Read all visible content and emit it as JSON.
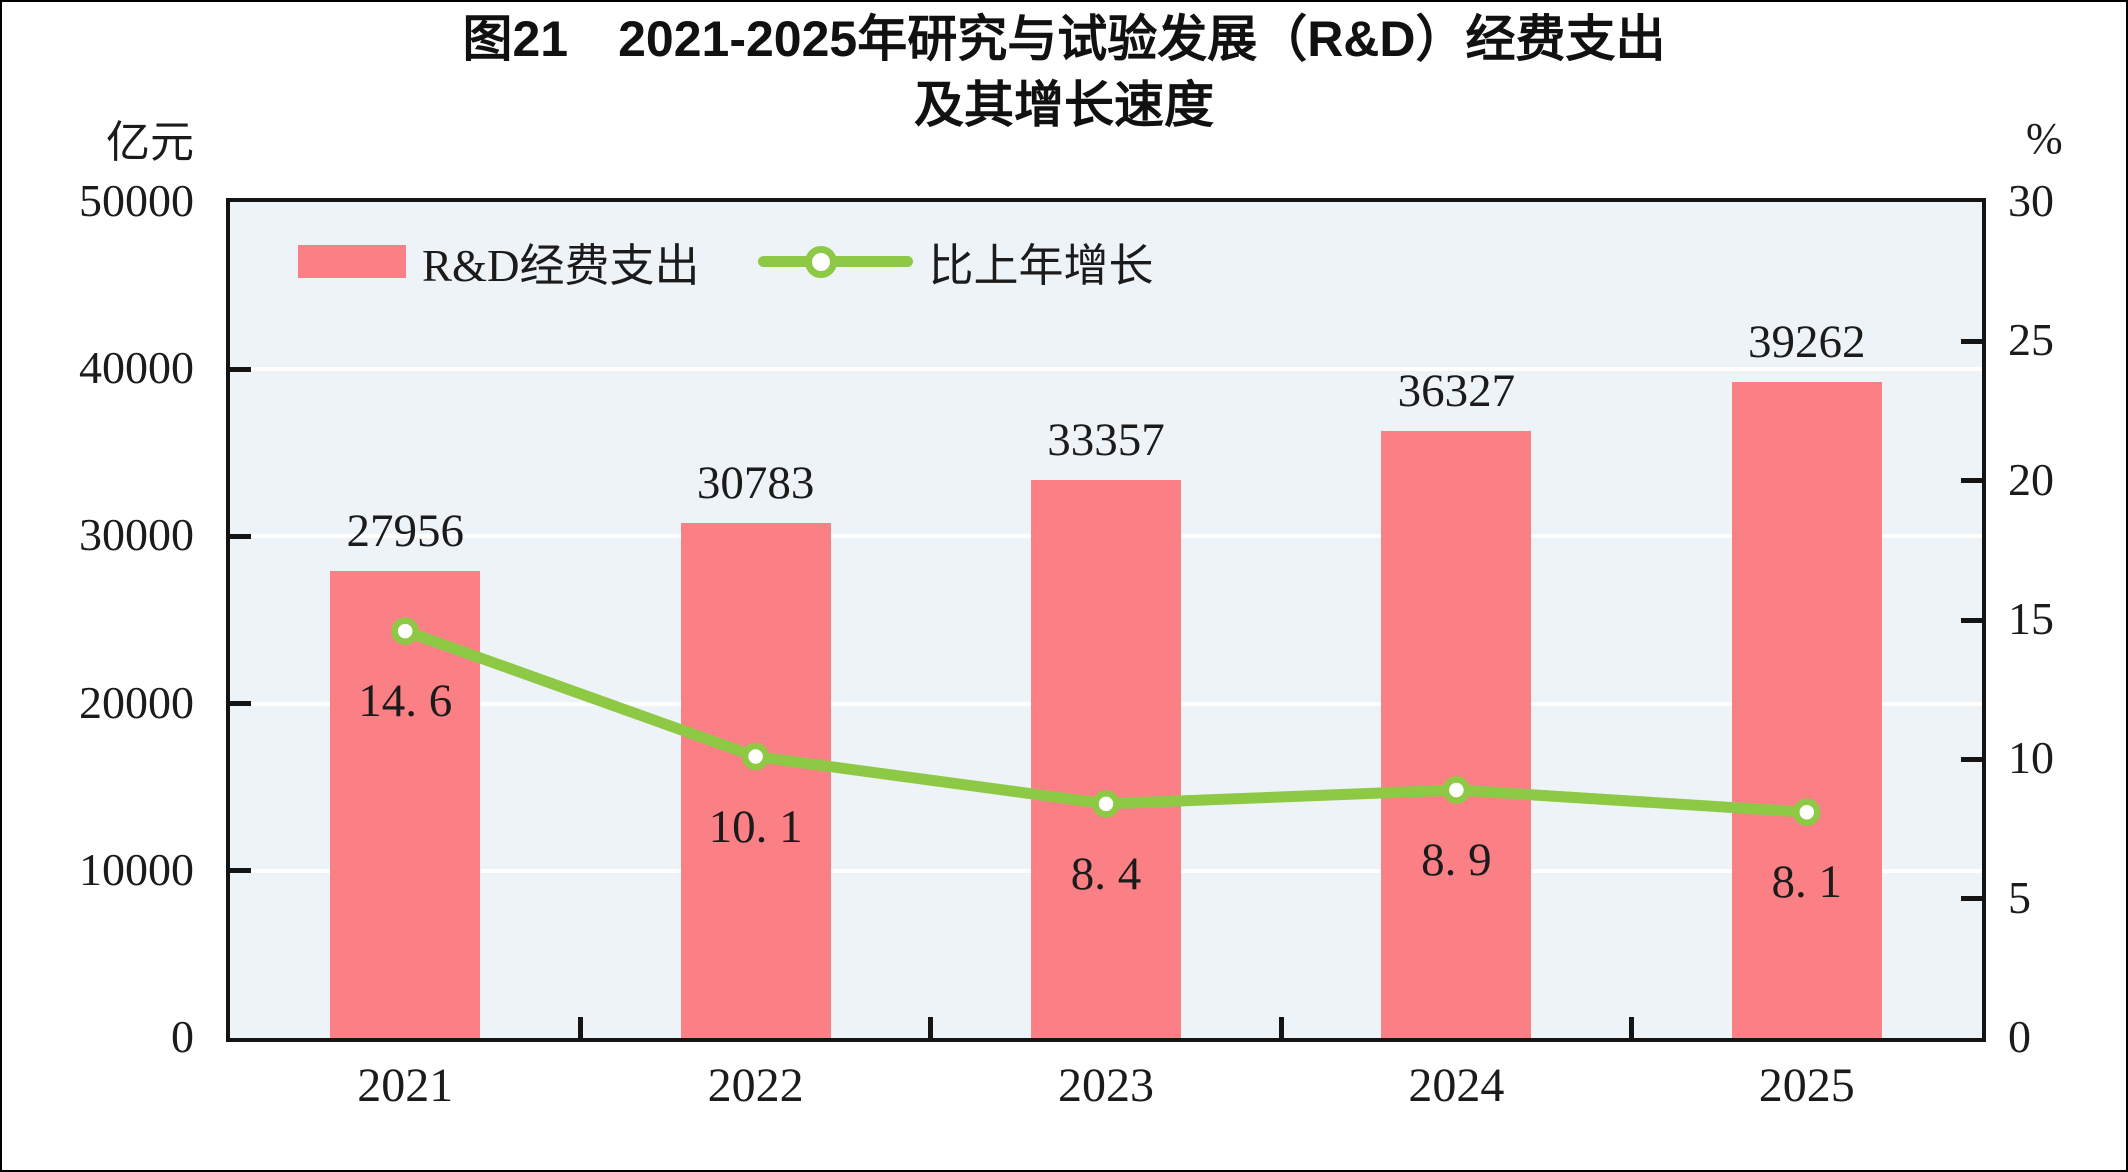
{
  "title": {
    "line1": "图21　2021-2025年研究与试验发展（R&D）经费支出",
    "line2": "及其增长速度"
  },
  "axes": {
    "left_unit": "亿元",
    "right_unit": "%",
    "left_tick_labels": [
      "50000",
      "40000",
      "30000",
      "20000",
      "10000",
      "0"
    ],
    "right_tick_labels": [
      "30",
      "25",
      "20",
      "15",
      "10",
      "5",
      "0"
    ]
  },
  "legend": {
    "bar_label": "R&D经费支出",
    "line_label": "比上年增长"
  },
  "chart_data": {
    "type": "bar",
    "subtype": "bar+line combo, dual axis",
    "title": "图21 2021-2025年研究与试验发展（R&D）经费支出及其增长速度",
    "categories": [
      "2021",
      "2022",
      "2023",
      "2024",
      "2025"
    ],
    "series": [
      {
        "name": "R&D经费支出",
        "type": "bar",
        "axis": "left",
        "unit": "亿元",
        "values": [
          27956,
          30783,
          33357,
          36327,
          39262
        ],
        "value_labels": [
          "27956",
          "30783",
          "33357",
          "36327",
          "39262"
        ]
      },
      {
        "name": "比上年增长",
        "type": "line",
        "axis": "right",
        "unit": "%",
        "values": [
          14.6,
          10.1,
          8.4,
          8.9,
          8.1
        ],
        "value_labels": [
          "14. 6",
          "10. 1",
          "8. 4",
          "8. 9",
          "8. 1"
        ]
      }
    ],
    "left_axis": {
      "label": "亿元",
      "min": 0,
      "max": 50000,
      "step": 10000
    },
    "right_axis": {
      "label": "%",
      "min": 0,
      "max": 30,
      "step": 5
    },
    "grid": "horizontal white gridlines at left-axis steps",
    "legend_position": "top-left inside plot",
    "colors": {
      "bar": "#FB8085",
      "line": "#8DC944",
      "marker_fill": "#FFFFFF",
      "plot_background": "#EDF3F7",
      "gridline": "#FFFFFF",
      "axis": "#141414",
      "text": "#1B1B1B"
    }
  }
}
